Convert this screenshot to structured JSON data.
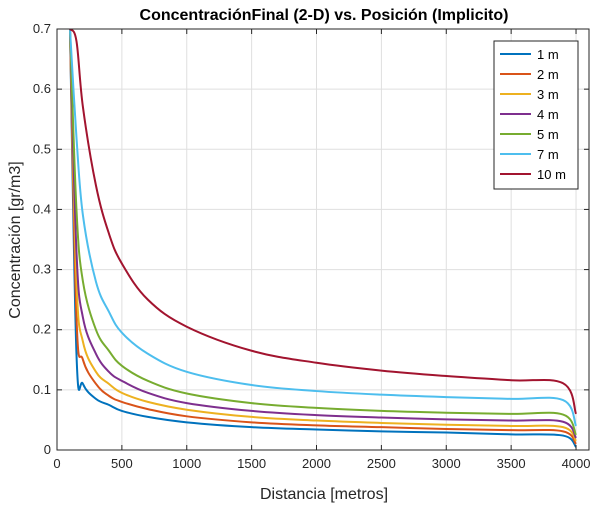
{
  "chart_data": {
    "type": "line",
    "title": "ConcentraciónFinal (2-D) vs. Posición (Implicito)",
    "xlabel": "Distancia [metros]",
    "ylabel": "Concentración [gr/m3]",
    "xlim": [
      0,
      4100
    ],
    "ylim": [
      0,
      0.7
    ],
    "xticks": [
      0,
      500,
      1000,
      1500,
      2000,
      2500,
      3000,
      3500,
      4000
    ],
    "yticks": [
      0,
      0.1,
      0.2,
      0.3,
      0.4,
      0.5,
      0.6,
      0.7
    ],
    "xtick_labels": [
      "0",
      "500",
      "1000",
      "1500",
      "2000",
      "2500",
      "3000",
      "3500",
      "4000"
    ],
    "ytick_labels": [
      "0",
      "0.1",
      "0.2",
      "0.3",
      "0.4",
      "0.5",
      "0.6",
      "0.7"
    ],
    "grid": true,
    "legend_position": "top-right",
    "x": [
      100,
      150,
      200,
      300,
      400,
      500,
      700,
      1000,
      1500,
      2000,
      2500,
      3000,
      3500,
      3900,
      4000
    ],
    "series": [
      {
        "name": "1 m",
        "color": "#0072BD",
        "values": [
          0.7,
          0.16,
          0.11,
          0.085,
          0.075,
          0.065,
          0.055,
          0.046,
          0.038,
          0.034,
          0.031,
          0.029,
          0.026,
          0.024,
          0.005
        ]
      },
      {
        "name": "2 m",
        "color": "#D95319",
        "values": [
          0.7,
          0.22,
          0.15,
          0.11,
          0.09,
          0.08,
          0.068,
          0.056,
          0.046,
          0.041,
          0.038,
          0.035,
          0.033,
          0.031,
          0.01
        ]
      },
      {
        "name": "3 m",
        "color": "#EDB120",
        "values": [
          0.7,
          0.28,
          0.18,
          0.13,
          0.11,
          0.095,
          0.08,
          0.067,
          0.055,
          0.049,
          0.045,
          0.042,
          0.04,
          0.038,
          0.015
        ]
      },
      {
        "name": "4 m",
        "color": "#7E2F8E",
        "values": [
          0.7,
          0.33,
          0.22,
          0.16,
          0.13,
          0.115,
          0.095,
          0.078,
          0.065,
          0.058,
          0.054,
          0.051,
          0.049,
          0.047,
          0.02
        ]
      },
      {
        "name": "5 m",
        "color": "#77AC30",
        "values": [
          0.7,
          0.4,
          0.28,
          0.2,
          0.165,
          0.14,
          0.115,
          0.094,
          0.078,
          0.07,
          0.065,
          0.062,
          0.06,
          0.059,
          0.025
        ]
      },
      {
        "name": "7 m",
        "color": "#4DBEEE",
        "values": [
          0.7,
          0.52,
          0.39,
          0.28,
          0.23,
          0.195,
          0.16,
          0.13,
          0.108,
          0.098,
          0.092,
          0.088,
          0.085,
          0.083,
          0.04
        ]
      },
      {
        "name": "10 m",
        "color": "#A2142F",
        "values": [
          0.7,
          0.68,
          0.57,
          0.44,
          0.36,
          0.31,
          0.25,
          0.205,
          0.165,
          0.145,
          0.132,
          0.123,
          0.116,
          0.111,
          0.06
        ]
      }
    ]
  }
}
